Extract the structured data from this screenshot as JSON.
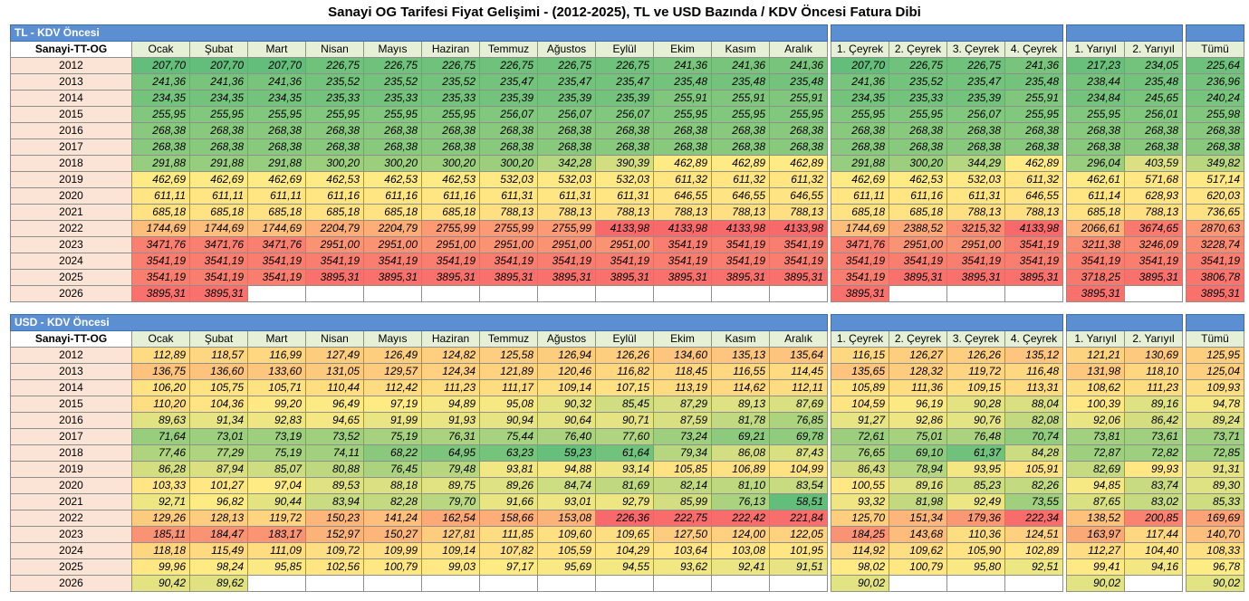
{
  "title": "Sanayi OG Tarifesi Fiyat Gelişimi - (2012-2025), TL ve USD Bazında / KDV Öncesi Fatura Dibi",
  "columns": [
    "Sanayi-TT-OG",
    "Ocak",
    "Şubat",
    "Mart",
    "Nisan",
    "Mayıs",
    "Haziran",
    "Temmuz",
    "Ağustos",
    "Eylül",
    "Ekim",
    "Kasım",
    "Aralık",
    "1. Çeyrek",
    "2. Çeyrek",
    "3. Çeyrek",
    "4. Çeyrek",
    "1. Yarıyıl",
    "2. Yarıyıl",
    "Tümü"
  ],
  "colors": {
    "green": "#63be7b",
    "yellow": "#ffeb84",
    "red": "#f8696b",
    "section": "#5b8fd1",
    "year_bg": "#fbe4d6",
    "header_bg": "#e6f0d6"
  },
  "tables": [
    {
      "label": "TL - KDV Öncesi",
      "rows": [
        {
          "year": "2012",
          "values": [
            "207,70",
            "207,70",
            "207,70",
            "226,75",
            "226,75",
            "226,75",
            "226,75",
            "226,75",
            "226,75",
            "241,36",
            "241,36",
            "241,36",
            "207,70",
            "226,75",
            "226,75",
            "241,36",
            "217,23",
            "234,05",
            "225,64"
          ]
        },
        {
          "year": "2013",
          "values": [
            "241,36",
            "241,36",
            "241,36",
            "235,52",
            "235,52",
            "235,52",
            "235,47",
            "235,47",
            "235,47",
            "235,48",
            "235,48",
            "235,48",
            "241,36",
            "235,52",
            "235,47",
            "235,48",
            "238,44",
            "235,48",
            "236,96"
          ]
        },
        {
          "year": "2014",
          "values": [
            "234,35",
            "234,35",
            "234,35",
            "235,33",
            "235,33",
            "235,33",
            "235,39",
            "235,39",
            "235,39",
            "255,91",
            "255,91",
            "255,91",
            "234,35",
            "235,33",
            "235,39",
            "255,91",
            "234,84",
            "245,65",
            "240,24"
          ]
        },
        {
          "year": "2015",
          "values": [
            "255,95",
            "255,95",
            "255,95",
            "255,95",
            "255,95",
            "255,95",
            "256,07",
            "256,07",
            "256,07",
            "255,95",
            "255,95",
            "255,95",
            "255,95",
            "255,95",
            "256,07",
            "255,95",
            "255,95",
            "256,01",
            "255,98"
          ]
        },
        {
          "year": "2016",
          "values": [
            "268,38",
            "268,38",
            "268,38",
            "268,38",
            "268,38",
            "268,38",
            "268,38",
            "268,38",
            "268,38",
            "268,38",
            "268,38",
            "268,38",
            "268,38",
            "268,38",
            "268,38",
            "268,38",
            "268,38",
            "268,38",
            "268,38"
          ]
        },
        {
          "year": "2017",
          "values": [
            "268,38",
            "268,38",
            "268,38",
            "268,38",
            "268,38",
            "268,38",
            "268,38",
            "268,38",
            "268,38",
            "268,38",
            "268,38",
            "268,38",
            "268,38",
            "268,38",
            "268,38",
            "268,38",
            "268,38",
            "268,38",
            "268,38"
          ]
        },
        {
          "year": "2018",
          "values": [
            "291,88",
            "291,88",
            "291,88",
            "300,20",
            "300,20",
            "300,20",
            "300,20",
            "342,28",
            "390,39",
            "462,89",
            "462,89",
            "462,89",
            "291,88",
            "300,20",
            "344,29",
            "462,89",
            "296,04",
            "403,59",
            "349,82"
          ]
        },
        {
          "year": "2019",
          "values": [
            "462,69",
            "462,69",
            "462,69",
            "462,53",
            "462,53",
            "462,53",
            "532,03",
            "532,03",
            "532,03",
            "611,32",
            "611,32",
            "611,32",
            "462,69",
            "462,53",
            "532,03",
            "611,32",
            "462,61",
            "571,68",
            "517,14"
          ]
        },
        {
          "year": "2020",
          "values": [
            "611,11",
            "611,11",
            "611,11",
            "611,16",
            "611,16",
            "611,16",
            "611,31",
            "611,31",
            "611,31",
            "646,55",
            "646,55",
            "646,55",
            "611,11",
            "611,16",
            "611,31",
            "646,55",
            "611,14",
            "628,93",
            "620,03"
          ]
        },
        {
          "year": "2021",
          "values": [
            "685,18",
            "685,18",
            "685,18",
            "685,18",
            "685,18",
            "685,18",
            "788,13",
            "788,13",
            "788,13",
            "788,13",
            "788,13",
            "788,13",
            "685,18",
            "685,18",
            "788,13",
            "788,13",
            "685,18",
            "788,13",
            "736,65"
          ]
        },
        {
          "year": "2022",
          "values": [
            "1744,69",
            "1744,69",
            "1744,69",
            "2204,79",
            "2204,79",
            "2755,99",
            "2755,99",
            "2755,99",
            "4133,98",
            "4133,98",
            "4133,98",
            "4133,98",
            "1744,69",
            "2388,52",
            "3215,32",
            "4133,98",
            "2066,61",
            "3674,65",
            "2870,63"
          ]
        },
        {
          "year": "2023",
          "values": [
            "3471,76",
            "3471,76",
            "3471,76",
            "2951,00",
            "2951,00",
            "2951,00",
            "2951,00",
            "2951,00",
            "2951,00",
            "3541,19",
            "3541,19",
            "3541,19",
            "3471,76",
            "2951,00",
            "2951,00",
            "3541,19",
            "3211,38",
            "3246,09",
            "3228,74"
          ]
        },
        {
          "year": "2024",
          "values": [
            "3541,19",
            "3541,19",
            "3541,19",
            "3541,19",
            "3541,19",
            "3541,19",
            "3541,19",
            "3541,19",
            "3541,19",
            "3541,19",
            "3541,19",
            "3541,19",
            "3541,19",
            "3541,19",
            "3541,19",
            "3541,19",
            "3541,19",
            "3541,19",
            "3541,19"
          ]
        },
        {
          "year": "2025",
          "values": [
            "3541,19",
            "3541,19",
            "3541,19",
            "3895,31",
            "3895,31",
            "3895,31",
            "3895,31",
            "3895,31",
            "3895,31",
            "3895,31",
            "3895,31",
            "3895,31",
            "3541,19",
            "3895,31",
            "3895,31",
            "3895,31",
            "3718,25",
            "3895,31",
            "3806,78"
          ]
        },
        {
          "year": "2026",
          "values": [
            "3895,31",
            "3895,31",
            "",
            "",
            "",
            "",
            "",
            "",
            "",
            "",
            "",
            "",
            "3895,31",
            "",
            "",
            "",
            "3895,31",
            "",
            "3895,31"
          ]
        }
      ]
    },
    {
      "label": "USD - KDV Öncesi",
      "rows": [
        {
          "year": "2012",
          "values": [
            "112,89",
            "118,57",
            "116,99",
            "127,49",
            "126,49",
            "124,82",
            "125,58",
            "126,94",
            "126,26",
            "134,60",
            "135,13",
            "135,64",
            "116,15",
            "126,27",
            "126,26",
            "135,12",
            "121,21",
            "130,69",
            "125,95"
          ]
        },
        {
          "year": "2013",
          "values": [
            "136,75",
            "136,60",
            "133,60",
            "131,05",
            "129,57",
            "124,34",
            "121,89",
            "120,46",
            "116,82",
            "118,45",
            "116,55",
            "114,45",
            "135,65",
            "128,32",
            "119,72",
            "116,48",
            "131,98",
            "118,10",
            "125,04"
          ]
        },
        {
          "year": "2014",
          "values": [
            "106,20",
            "105,75",
            "105,71",
            "110,44",
            "112,42",
            "111,23",
            "111,17",
            "109,14",
            "107,15",
            "113,19",
            "114,62",
            "112,11",
            "105,89",
            "111,36",
            "109,15",
            "113,31",
            "108,62",
            "111,23",
            "109,93"
          ]
        },
        {
          "year": "2015",
          "values": [
            "110,20",
            "104,36",
            "99,20",
            "96,49",
            "97,19",
            "94,89",
            "95,08",
            "90,32",
            "85,45",
            "87,29",
            "89,13",
            "87,69",
            "104,59",
            "96,19",
            "90,28",
            "88,04",
            "100,39",
            "89,16",
            "94,78"
          ]
        },
        {
          "year": "2016",
          "values": [
            "89,63",
            "91,34",
            "92,83",
            "94,65",
            "91,99",
            "91,93",
            "90,94",
            "90,64",
            "90,71",
            "87,59",
            "81,78",
            "76,85",
            "91,27",
            "92,86",
            "90,76",
            "82,08",
            "92,06",
            "86,42",
            "89,24"
          ]
        },
        {
          "year": "2017",
          "values": [
            "71,64",
            "73,01",
            "73,19",
            "73,52",
            "75,19",
            "76,31",
            "75,44",
            "76,40",
            "77,60",
            "73,24",
            "69,21",
            "69,78",
            "72,61",
            "75,01",
            "76,48",
            "70,74",
            "73,81",
            "73,61",
            "73,71"
          ]
        },
        {
          "year": "2018",
          "values": [
            "77,46",
            "77,29",
            "75,19",
            "74,11",
            "68,22",
            "64,95",
            "63,23",
            "59,23",
            "61,64",
            "79,34",
            "86,08",
            "87,43",
            "76,65",
            "69,10",
            "61,37",
            "84,28",
            "72,87",
            "72,82",
            "72,85"
          ]
        },
        {
          "year": "2019",
          "values": [
            "86,28",
            "87,94",
            "85,07",
            "80,88",
            "76,45",
            "79,48",
            "93,81",
            "94,88",
            "93,14",
            "105,85",
            "106,89",
            "104,99",
            "86,43",
            "78,94",
            "93,95",
            "105,91",
            "82,69",
            "99,93",
            "91,31"
          ]
        },
        {
          "year": "2020",
          "values": [
            "103,33",
            "101,27",
            "97,04",
            "89,53",
            "88,18",
            "89,75",
            "89,26",
            "84,74",
            "81,69",
            "82,14",
            "81,10",
            "83,54",
            "100,55",
            "89,16",
            "85,23",
            "82,26",
            "94,85",
            "83,74",
            "89,30"
          ]
        },
        {
          "year": "2021",
          "values": [
            "92,71",
            "96,82",
            "90,44",
            "83,94",
            "82,28",
            "79,70",
            "91,66",
            "93,01",
            "92,79",
            "85,99",
            "76,13",
            "58,51",
            "93,32",
            "81,98",
            "92,49",
            "73,55",
            "87,65",
            "83,02",
            "85,33"
          ]
        },
        {
          "year": "2022",
          "values": [
            "129,26",
            "128,13",
            "119,72",
            "150,23",
            "141,24",
            "162,54",
            "158,66",
            "153,08",
            "226,36",
            "222,75",
            "222,42",
            "221,84",
            "125,70",
            "151,34",
            "179,36",
            "222,34",
            "138,52",
            "200,85",
            "169,69"
          ]
        },
        {
          "year": "2023",
          "values": [
            "185,11",
            "184,47",
            "183,17",
            "152,97",
            "150,27",
            "127,81",
            "111,85",
            "109,60",
            "109,65",
            "127,50",
            "124,00",
            "122,05",
            "184,25",
            "143,68",
            "110,36",
            "124,51",
            "163,97",
            "117,44",
            "140,70"
          ]
        },
        {
          "year": "2024",
          "values": [
            "118,18",
            "115,49",
            "111,09",
            "109,72",
            "109,99",
            "109,14",
            "107,82",
            "105,59",
            "104,29",
            "103,64",
            "103,08",
            "101,95",
            "114,92",
            "109,62",
            "105,90",
            "102,89",
            "112,27",
            "104,40",
            "108,33"
          ]
        },
        {
          "year": "2025",
          "values": [
            "99,96",
            "98,24",
            "95,85",
            "102,56",
            "100,79",
            "99,03",
            "97,17",
            "95,69",
            "94,55",
            "93,62",
            "92,41",
            "91,51",
            "98,02",
            "100,79",
            "95,80",
            "92,51",
            "99,41",
            "94,16",
            "96,78"
          ]
        },
        {
          "year": "2026",
          "values": [
            "90,42",
            "89,62",
            "",
            "",
            "",
            "",
            "",
            "",
            "",
            "",
            "",
            "",
            "90,02",
            "",
            "",
            "",
            "90,02",
            "",
            "90,02"
          ]
        }
      ]
    }
  ]
}
